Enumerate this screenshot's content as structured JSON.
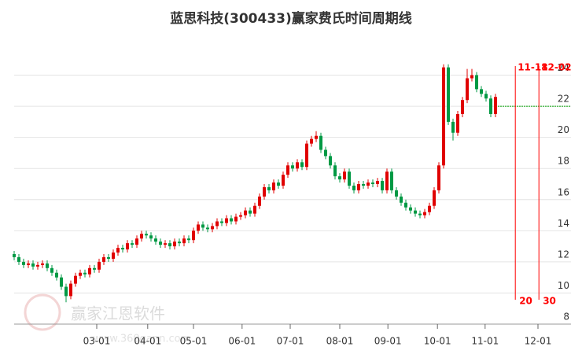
{
  "chart_data": {
    "type": "candlestick",
    "title": "蓝思科技(300433)赢家费氏时间周期线",
    "watermark": {
      "text": "赢家江恩软件",
      "url": "www.360gann.com"
    },
    "up_color": "#e00000",
    "down_color": "#009944",
    "grid": true,
    "xlim": [
      0,
      118
    ],
    "xticks": [
      {
        "value": 17.5,
        "label": "03-01"
      },
      {
        "value": 28.3,
        "label": "04-01"
      },
      {
        "value": 38,
        "label": "05-01"
      },
      {
        "value": 48.3,
        "label": "06-01"
      },
      {
        "value": 58.5,
        "label": "07-01"
      },
      {
        "value": 69,
        "label": "08-01"
      },
      {
        "value": 79.2,
        "label": "09-01"
      },
      {
        "value": 89.7,
        "label": "10-01"
      },
      {
        "value": 99.8,
        "label": "11-01"
      },
      {
        "value": 111,
        "label": "12-01"
      }
    ],
    "ylim": [
      8,
      26
    ],
    "yticks": [
      8,
      10,
      12,
      14,
      16,
      18,
      20,
      22,
      24
    ],
    "reference_line": {
      "value": 22,
      "start_x": 102,
      "color": "#00a000"
    },
    "time_markers": {
      "color": "#ff0000",
      "items": [
        {
          "x": 106.2,
          "top_label": "11-18",
          "bottom_label": "20"
        },
        {
          "x": 111.2,
          "top_label": "12-02",
          "bottom_label": "30"
        }
      ]
    },
    "x": [
      0,
      1,
      2,
      3,
      4,
      5,
      6,
      7,
      8,
      9,
      10,
      11,
      12,
      13,
      14,
      15,
      16,
      17,
      18,
      19,
      20,
      21,
      22,
      23,
      24,
      25,
      26,
      27,
      28,
      29,
      30,
      31,
      32,
      33,
      34,
      35,
      36,
      37,
      38,
      39,
      40,
      41,
      42,
      43,
      44,
      45,
      46,
      47,
      48,
      49,
      50,
      51,
      52,
      53,
      54,
      55,
      56,
      57,
      58,
      59,
      60,
      61,
      62,
      63,
      64,
      65,
      66,
      67,
      68,
      69,
      70,
      71,
      72,
      73,
      74,
      75,
      76,
      77,
      78,
      79,
      80,
      81,
      82,
      83,
      84,
      85,
      86,
      87,
      88,
      89,
      90,
      91,
      92,
      93,
      94,
      95,
      96,
      97,
      98,
      99,
      100,
      101,
      102
    ],
    "open": [
      12.5,
      12.3,
      12.0,
      11.8,
      11.9,
      11.7,
      11.8,
      11.9,
      11.6,
      11.3,
      11.0,
      10.4,
      9.8,
      10.6,
      11.1,
      11.3,
      11.2,
      11.6,
      11.5,
      12.0,
      12.3,
      12.2,
      12.6,
      12.9,
      12.8,
      13.2,
      13.1,
      13.5,
      13.8,
      13.7,
      13.5,
      13.3,
      13.1,
      13.2,
      13.0,
      13.3,
      13.2,
      13.5,
      13.4,
      14.0,
      14.4,
      14.2,
      14.1,
      14.3,
      14.6,
      14.5,
      14.8,
      14.6,
      14.9,
      15.0,
      15.3,
      15.1,
      15.6,
      16.2,
      16.8,
      16.6,
      17.1,
      16.9,
      17.6,
      18.2,
      18.0,
      18.4,
      18.1,
      19.6,
      19.9,
      20.1,
      19.2,
      18.8,
      18.2,
      17.5,
      17.3,
      17.8,
      16.9,
      16.6,
      17.0,
      16.9,
      17.1,
      17.0,
      17.2,
      16.6,
      17.8,
      16.6,
      16.2,
      15.8,
      15.5,
      15.3,
      15.1,
      15.0,
      15.2,
      15.6,
      16.6,
      18.2,
      24.5,
      21.0,
      20.3,
      21.5,
      22.4,
      23.8,
      24.0,
      23.1,
      22.8,
      22.5,
      21.5
    ],
    "close": [
      12.3,
      12.0,
      11.8,
      11.9,
      11.7,
      11.8,
      11.9,
      11.6,
      11.3,
      11.0,
      10.4,
      9.8,
      10.6,
      11.1,
      11.3,
      11.2,
      11.6,
      11.5,
      12.0,
      12.3,
      12.2,
      12.6,
      12.9,
      12.8,
      13.2,
      13.1,
      13.5,
      13.8,
      13.7,
      13.5,
      13.3,
      13.1,
      13.2,
      13.0,
      13.3,
      13.2,
      13.5,
      13.4,
      14.0,
      14.4,
      14.2,
      14.1,
      14.3,
      14.6,
      14.5,
      14.8,
      14.6,
      14.9,
      15.0,
      15.3,
      15.1,
      15.6,
      16.2,
      16.8,
      16.6,
      17.1,
      16.9,
      17.6,
      18.2,
      18.0,
      18.4,
      18.1,
      19.6,
      19.9,
      20.1,
      19.2,
      18.8,
      18.2,
      17.5,
      17.3,
      17.8,
      16.9,
      16.6,
      17.0,
      16.9,
      17.1,
      17.0,
      17.2,
      16.6,
      17.8,
      16.6,
      16.2,
      15.8,
      15.5,
      15.3,
      15.1,
      15.0,
      15.2,
      15.6,
      16.6,
      18.2,
      24.5,
      21.0,
      20.3,
      21.5,
      22.4,
      23.8,
      24.0,
      23.1,
      22.8,
      22.5,
      21.5,
      22.6
    ],
    "high": [
      12.7,
      12.5,
      12.2,
      12.1,
      12.1,
      12.0,
      12.1,
      12.1,
      11.8,
      11.5,
      11.2,
      10.6,
      10.8,
      11.3,
      11.5,
      11.5,
      11.8,
      11.8,
      12.2,
      12.5,
      12.5,
      12.8,
      13.1,
      13.1,
      13.4,
      13.4,
      13.7,
      14.0,
      14.0,
      13.9,
      13.7,
      13.5,
      13.4,
      13.4,
      13.5,
      13.5,
      13.7,
      13.7,
      14.2,
      14.6,
      14.6,
      14.4,
      14.5,
      14.8,
      14.8,
      15.0,
      15.0,
      15.1,
      15.2,
      15.5,
      15.5,
      15.8,
      16.4,
      17.0,
      17.0,
      17.3,
      17.3,
      17.8,
      18.4,
      18.4,
      18.6,
      18.6,
      19.8,
      20.1,
      20.4,
      20.3,
      19.4,
      19.0,
      18.4,
      17.7,
      18.0,
      18.0,
      17.1,
      17.2,
      17.2,
      17.3,
      17.3,
      17.4,
      17.4,
      18.0,
      18.0,
      16.8,
      16.4,
      16.0,
      15.7,
      15.5,
      15.3,
      15.4,
      15.8,
      16.8,
      18.4,
      24.7,
      24.7,
      21.2,
      21.7,
      22.6,
      24.4,
      24.4,
      24.2,
      23.3,
      23.0,
      22.7,
      22.8
    ],
    "low": [
      12.1,
      11.8,
      11.6,
      11.6,
      11.5,
      11.5,
      11.6,
      11.4,
      11.1,
      10.8,
      10.2,
      9.4,
      9.6,
      10.4,
      10.9,
      11.0,
      11.0,
      11.3,
      11.3,
      11.8,
      12.0,
      12.0,
      12.4,
      12.6,
      12.6,
      12.9,
      12.9,
      13.3,
      13.5,
      13.3,
      13.1,
      12.9,
      12.9,
      12.8,
      12.8,
      13.0,
      13.0,
      13.2,
      13.2,
      13.8,
      14.0,
      13.9,
      13.9,
      14.1,
      14.3,
      14.3,
      14.4,
      14.4,
      14.7,
      14.8,
      14.9,
      14.9,
      15.4,
      16.0,
      16.4,
      16.4,
      16.7,
      16.7,
      17.4,
      17.8,
      17.8,
      17.9,
      17.9,
      19.4,
      19.7,
      19.0,
      18.6,
      18.0,
      17.3,
      17.1,
      17.1,
      16.7,
      16.4,
      16.4,
      16.7,
      16.7,
      16.8,
      16.8,
      16.4,
      16.4,
      16.4,
      16.0,
      15.6,
      15.3,
      15.1,
      14.9,
      14.8,
      14.8,
      15.0,
      15.4,
      16.4,
      18.0,
      20.8,
      19.8,
      20.1,
      21.3,
      22.2,
      23.6,
      22.9,
      22.6,
      22.3,
      21.3,
      21.3
    ]
  }
}
